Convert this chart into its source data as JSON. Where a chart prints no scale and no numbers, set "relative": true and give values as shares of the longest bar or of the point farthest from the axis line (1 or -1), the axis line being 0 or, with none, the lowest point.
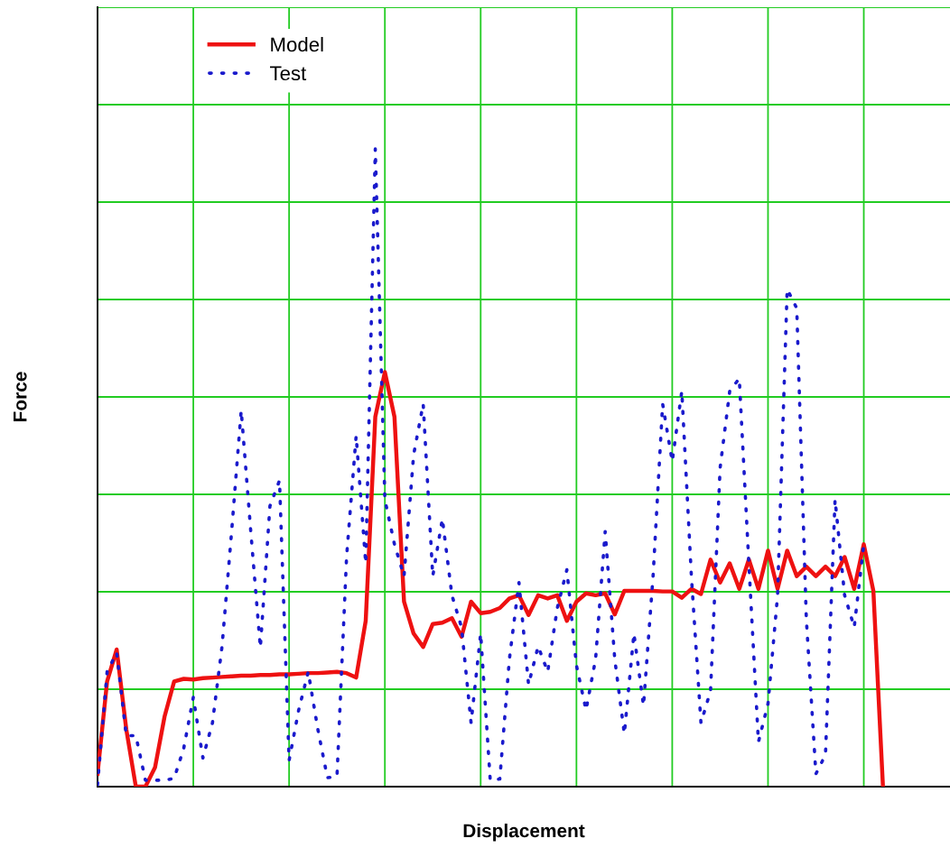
{
  "chart_data": {
    "type": "line",
    "relative": true,
    "xlabel": "Displacement",
    "ylabel": "Force",
    "categories": [
      null,
      null,
      null,
      null,
      null,
      null,
      null,
      null,
      null,
      null,
      null,
      null,
      null,
      null,
      null,
      null,
      null,
      null,
      null,
      null,
      null,
      null,
      null,
      null,
      null,
      null,
      null,
      null,
      null,
      null,
      null,
      null,
      null,
      null,
      null,
      null,
      null,
      null,
      null,
      null,
      null,
      null,
      null,
      null,
      null,
      null,
      null,
      null,
      null,
      null,
      null,
      null,
      null,
      null,
      null,
      null,
      null,
      null,
      null,
      null,
      null,
      null,
      null,
      null,
      null,
      null,
      null,
      null,
      null,
      null,
      null,
      null,
      null,
      null,
      null,
      null,
      null,
      null,
      null,
      null,
      null,
      null,
      null,
      null,
      null,
      null,
      null,
      null,
      null,
      null
    ],
    "tick_labels": false,
    "grid": true,
    "legend": "top left",
    "series": [
      {
        "name": "Model",
        "color": "#ee1111",
        "line_style": "solid",
        "values": [
          0.02,
          0.165,
          0.215,
          0.09,
          0,
          0,
          0.03,
          0.11,
          0.165,
          0.169,
          0.168,
          0.17,
          0.171,
          0.172,
          0.173,
          0.174,
          0.174,
          0.175,
          0.175,
          0.176,
          0.176,
          0.177,
          0.178,
          0.178,
          0.179,
          0.18,
          0.178,
          0.171,
          0.26,
          0.58,
          0.65,
          0.58,
          0.29,
          0.24,
          0.219,
          0.255,
          0.257,
          0.264,
          0.235,
          0.29,
          0.272,
          0.274,
          0.28,
          0.295,
          0.3,
          0.269,
          0.3,
          0.295,
          0.3,
          0.26,
          0.29,
          0.303,
          0.3,
          0.303,
          0.27,
          0.307,
          0.307,
          0.307,
          0.307,
          0.306,
          0.306,
          0.296,
          0.31,
          0.302,
          0.356,
          0.32,
          0.35,
          0.31,
          0.356,
          0.31,
          0.37,
          0.31,
          0.37,
          0.33,
          0.345,
          0.33,
          0.345,
          0.33,
          0.36,
          0.31,
          0.38,
          0.307,
          0,
          null,
          null,
          null,
          null,
          null,
          null,
          null
        ]
      },
      {
        "name": "Test",
        "color": "#1a1acc",
        "line_style": "dotted",
        "values": [
          0.003,
          0.18,
          0.21,
          0.08,
          0.08,
          0.01,
          0.01,
          0.01,
          0.013,
          0.06,
          0.14,
          0.045,
          0.1,
          0.22,
          0.4,
          0.59,
          0.4,
          0.218,
          0.44,
          0.48,
          0.041,
          0.12,
          0.18,
          0.09,
          0.014,
          0.016,
          0.36,
          0.55,
          0.35,
          1,
          0.45,
          0.38,
          0.33,
          0.52,
          0.6,
          0.33,
          0.42,
          0.3,
          0.25,
          0.1,
          0.24,
          0.01,
          0.012,
          0.2,
          0.32,
          0.16,
          0.22,
          0.18,
          0.28,
          0.34,
          0.19,
          0.12,
          0.2,
          0.4,
          0.2,
          0.083,
          0.24,
          0.127,
          0.33,
          0.6,
          0.51,
          0.62,
          0.33,
          0.1,
          0.15,
          0.5,
          0.62,
          0.64,
          0.35,
          0.07,
          0.13,
          0.3,
          0.78,
          0.75,
          0.263,
          0.02,
          0.05,
          0.45,
          0.3,
          0.25,
          0.38,
          null,
          null,
          null,
          null,
          null,
          null,
          null,
          null,
          null
        ]
      }
    ]
  }
}
